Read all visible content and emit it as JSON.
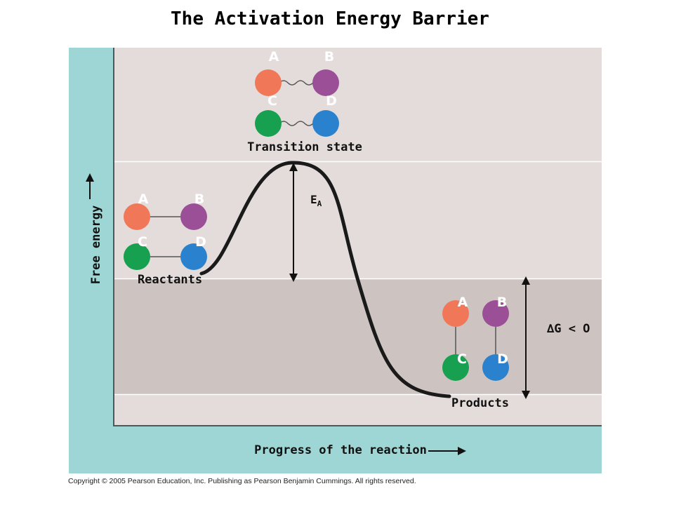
{
  "title": "The Activation Energy Barrier",
  "axes": {
    "y_label": "Free energy",
    "x_label": "Progress of the reaction"
  },
  "labels": {
    "transition_state": "Transition state",
    "reactants": "Reactants",
    "products": "Products",
    "activation_energy_main": "E",
    "activation_energy_sub": "A",
    "delta_g": "∆G < O"
  },
  "atoms": {
    "a": "A",
    "b": "B",
    "c": "C",
    "d": "D"
  },
  "colors": {
    "atom_a": "#f07859",
    "atom_b": "#9a4f97",
    "atom_c": "#16a04f",
    "atom_d": "#2a82cf",
    "frame": "#9dd6d4",
    "band_light": "#e3dcda",
    "band_dark": "#cdc3c0"
  },
  "copyright": "Copyright © 2005 Pearson Education, Inc. Publishing as Pearson Benjamin Cummings. All rights reserved."
}
